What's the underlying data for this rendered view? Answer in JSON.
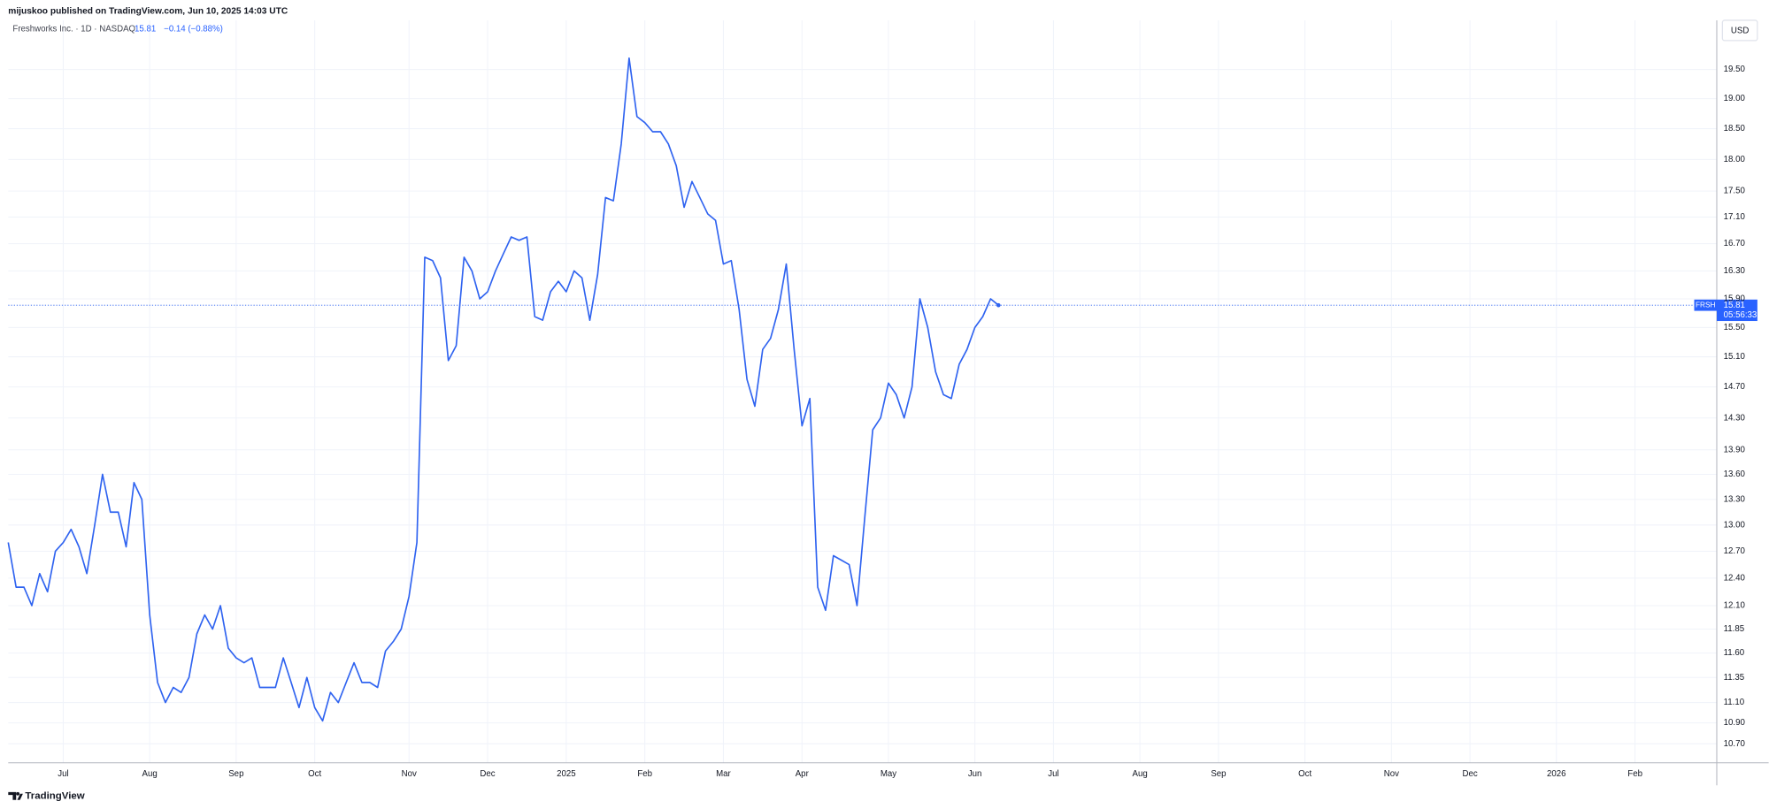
{
  "header": "mijuskoo published on TradingView.com, Jun 10, 2025 14:03 UTC",
  "chart_data": {
    "type": "line",
    "title": "Freshworks Inc. · 1D · NASDAQ",
    "change": "−0.14 (−0.88%)",
    "symbol": "FRSH",
    "countdown": "05:56:33",
    "currency": "USD",
    "log": true,
    "grid": true,
    "categories": [
      null,
      null,
      null,
      null,
      null,
      null,
      null,
      "Jul",
      null,
      null,
      null,
      null,
      null,
      null,
      null,
      null,
      null,
      null,
      "Aug",
      null,
      null,
      null,
      null,
      null,
      null,
      null,
      null,
      null,
      null,
      "Sep",
      null,
      null,
      null,
      null,
      null,
      null,
      null,
      null,
      null,
      "Oct",
      null,
      null,
      null,
      null,
      null,
      null,
      null,
      null,
      null,
      null,
      null,
      "Nov",
      null,
      null,
      null,
      null,
      null,
      null,
      null,
      null,
      null,
      "Dec",
      null,
      null,
      null,
      null,
      null,
      null,
      null,
      null,
      null,
      "2025",
      null,
      null,
      null,
      null,
      null,
      null,
      null,
      null,
      null,
      "Feb",
      null,
      null,
      null,
      null,
      null,
      null,
      null,
      null,
      null,
      "Mar",
      null,
      null,
      null,
      null,
      null,
      null,
      null,
      null,
      null,
      "Apr",
      null,
      null,
      null,
      null,
      null,
      null,
      null,
      null,
      null,
      null,
      "May",
      null,
      null,
      null,
      null,
      null,
      null,
      null,
      null,
      null,
      null,
      "Jun",
      null,
      null,
      null,
      null,
      null,
      null,
      null,
      null,
      null,
      "Jul",
      null,
      null,
      null,
      null,
      null,
      null,
      null,
      null,
      null,
      null,
      "Aug",
      null,
      null,
      null,
      null,
      null,
      null,
      null,
      null,
      null,
      "Sep",
      null,
      null,
      null,
      null,
      null,
      null,
      null,
      null,
      null,
      null,
      "Oct",
      null,
      null,
      null,
      null,
      null,
      null,
      null,
      null,
      null,
      null,
      "Nov",
      null,
      null,
      null,
      null,
      null,
      null,
      null,
      null,
      null,
      "Dec",
      null,
      null,
      null,
      null,
      null,
      null,
      null,
      null,
      null,
      null,
      "2026",
      null,
      null,
      null,
      null,
      null,
      null,
      null,
      null,
      null,
      "Feb",
      null,
      null,
      null,
      null,
      null,
      null,
      null,
      null,
      null
    ],
    "series": [
      {
        "name": "FRSH",
        "color": "#2f63f0",
        "values": [
          12.8,
          12.3,
          12.3,
          12.1,
          12.45,
          12.25,
          12.7,
          12.8,
          12.95,
          12.75,
          12.45,
          13.0,
          13.6,
          13.15,
          13.15,
          12.75,
          13.5,
          13.3,
          12.0,
          11.3,
          11.1,
          11.25,
          11.2,
          11.35,
          11.8,
          12.0,
          11.85,
          12.1,
          11.65,
          11.55,
          11.5,
          11.55,
          11.25,
          11.25,
          11.25,
          11.55,
          11.3,
          11.05,
          11.35,
          11.05,
          10.92,
          11.2,
          11.1,
          11.3,
          11.5,
          11.3,
          11.3,
          11.25,
          11.62,
          11.72,
          11.85,
          12.2,
          12.8,
          16.5,
          16.45,
          16.2,
          15.05,
          15.25,
          16.5,
          16.3,
          15.9,
          16.0,
          16.3,
          16.55,
          16.8,
          16.75,
          16.8,
          15.65,
          15.6,
          16.0,
          16.15,
          16.0,
          16.3,
          16.2,
          15.6,
          16.25,
          17.4,
          17.35,
          18.25,
          19.7,
          18.7,
          18.6,
          18.45,
          18.45,
          18.25,
          17.9,
          17.25,
          17.65,
          17.4,
          17.15,
          17.05,
          16.4,
          16.45,
          15.75,
          14.8,
          14.45,
          15.2,
          15.35,
          15.75,
          16.4,
          15.2,
          14.2,
          14.55,
          12.3,
          12.05,
          12.65,
          12.6,
          12.55,
          12.1,
          13.1,
          14.15,
          14.3,
          14.75,
          14.6,
          14.3,
          14.7,
          15.9,
          15.5,
          14.9,
          14.6,
          14.55,
          15.0,
          15.2,
          15.5,
          15.65,
          15.9,
          15.81,
          null,
          null,
          null,
          null,
          null,
          null,
          null,
          null,
          null,
          null,
          null,
          null,
          null,
          null,
          null,
          null,
          null,
          null,
          null,
          null,
          null,
          null,
          null,
          null,
          null,
          null,
          null,
          null,
          null,
          null,
          null,
          null,
          null,
          null,
          null,
          null,
          null,
          null,
          null,
          null,
          null,
          null,
          null,
          null,
          null,
          null,
          null,
          null,
          null,
          null,
          null,
          null,
          null,
          null,
          null,
          null,
          null,
          null,
          null,
          null,
          null,
          null,
          null,
          null,
          null,
          null,
          null,
          null,
          null,
          null,
          null,
          null,
          null,
          null,
          null,
          null,
          null,
          null,
          null,
          null,
          null,
          null,
          null,
          null,
          null,
          null,
          null,
          null,
          null,
          null
        ]
      }
    ],
    "ylim": [
      10.52,
      20.03
    ],
    "yticks": [
      {
        "value": 10.7,
        "label": "10.70"
      },
      {
        "value": 10.9,
        "label": "10.90"
      },
      {
        "value": 11.1,
        "label": "11.10"
      },
      {
        "value": 11.35,
        "label": "11.35"
      },
      {
        "value": 11.6,
        "label": "11.60"
      },
      {
        "value": 11.85,
        "label": "11.85"
      },
      {
        "value": 12.1,
        "label": "12.10"
      },
      {
        "value": 12.4,
        "label": "12.40"
      },
      {
        "value": 12.7,
        "label": "12.70"
      },
      {
        "value": 13,
        "label": "13.00"
      },
      {
        "value": 13.3,
        "label": "13.30"
      },
      {
        "value": 13.6,
        "label": "13.60"
      },
      {
        "value": 13.9,
        "label": "13.90"
      },
      {
        "value": 14.3,
        "label": "14.30"
      },
      {
        "value": 14.7,
        "label": "14.70"
      },
      {
        "value": 15.1,
        "label": "15.10"
      },
      {
        "value": 15.5,
        "label": "15.50"
      },
      {
        "value": 15.9,
        "label": "15.90"
      },
      {
        "value": 16.3,
        "label": "16.30"
      },
      {
        "value": 16.7,
        "label": "16.70"
      },
      {
        "value": 17.1,
        "label": "17.10"
      },
      {
        "value": 17.5,
        "label": "17.50"
      },
      {
        "value": 18,
        "label": "18.00"
      },
      {
        "value": 18.5,
        "label": "18.50"
      },
      {
        "value": 19,
        "label": "19.00"
      },
      {
        "value": 19.5,
        "label": "19.50"
      }
    ]
  },
  "footer": "TradingView"
}
